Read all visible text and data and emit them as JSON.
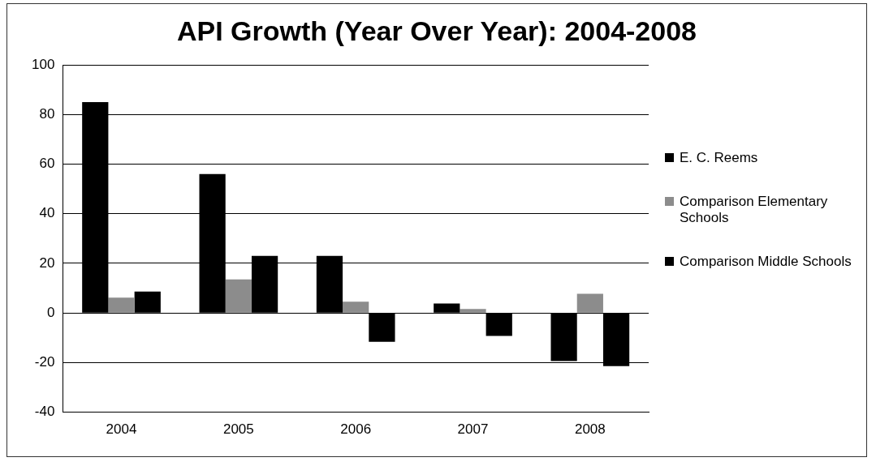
{
  "chart_data": {
    "type": "bar",
    "title": "API Growth (Year Over Year): 2004-2008",
    "categories": [
      "2004",
      "2005",
      "2006",
      "2007",
      "2008"
    ],
    "series": [
      {
        "name": "E. C. Reems",
        "color": "#000000",
        "values": [
          85,
          56,
          23,
          3.8,
          -19.4
        ]
      },
      {
        "name": "Comparison Elementary Schools",
        "color": "#8c8c8c",
        "values": [
          6.2,
          13.5,
          4.5,
          1.6,
          7.7
        ]
      },
      {
        "name": "Comparison Middle Schools",
        "color": "#000000",
        "values": [
          8.6,
          23,
          -11.6,
          -9.3,
          -21.4
        ]
      }
    ],
    "ylim": [
      -40,
      100
    ],
    "yticks": [
      -40,
      -20,
      0,
      20,
      40,
      60,
      80,
      100
    ],
    "grid": "y",
    "legend": "right"
  }
}
